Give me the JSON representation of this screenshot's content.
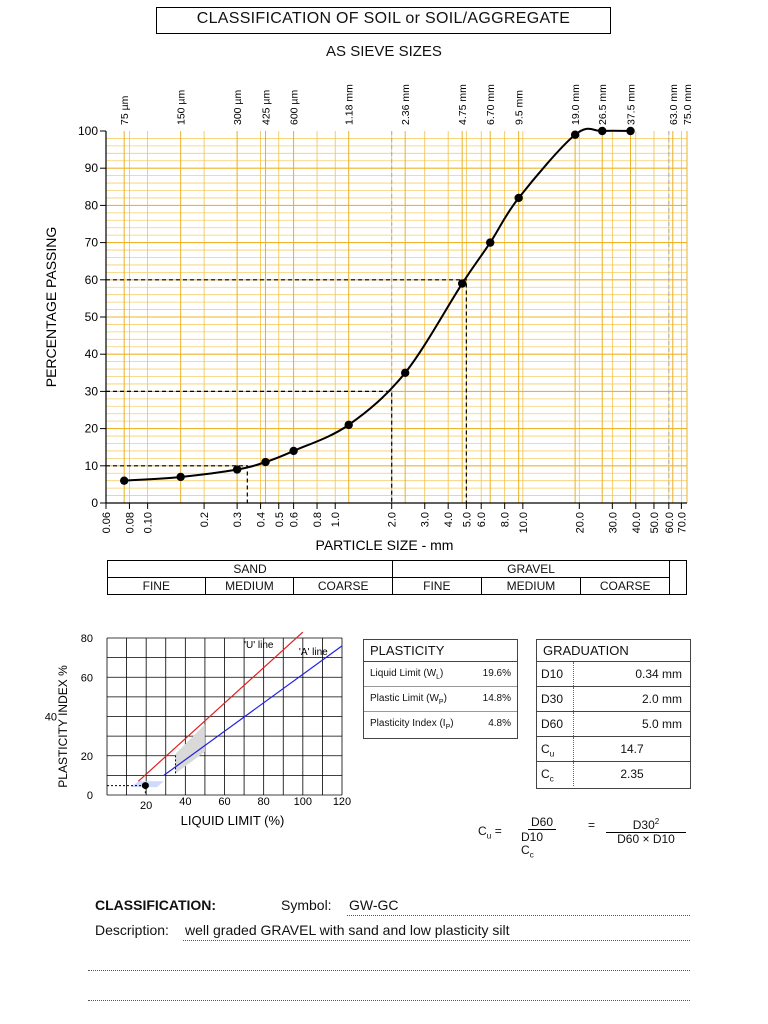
{
  "title": "CLASSIFICATION OF SOIL or SOIL/AGGREGATE",
  "subtitle": "AS SIEVE SIZES",
  "chart_data": [
    {
      "type": "line",
      "name": "grading-curve",
      "xscale": "log",
      "xlim": [
        0.06,
        75
      ],
      "ylim": [
        0,
        100
      ],
      "xlabel": "PARTICLE SIZE - mm",
      "ylabel": "PERCENTAGE PASSING",
      "grid": true,
      "yticks": [
        "0",
        "10",
        "20",
        "30",
        "40",
        "50",
        "60",
        "70",
        "80",
        "90",
        "100"
      ],
      "xticks": [
        {
          "v": 0.06,
          "t": "0.06"
        },
        {
          "v": 0.08,
          "t": "0.08"
        },
        {
          "v": 0.1,
          "t": "0.10"
        },
        {
          "v": 0.2,
          "t": "0.2"
        },
        {
          "v": 0.3,
          "t": "0.3"
        },
        {
          "v": 0.4,
          "t": "0.4"
        },
        {
          "v": 0.5,
          "t": "0.5"
        },
        {
          "v": 0.6,
          "t": "0.6"
        },
        {
          "v": 0.8,
          "t": "0.8"
        },
        {
          "v": 1.0,
          "t": "1.0"
        },
        {
          "v": 2.0,
          "t": "2.0"
        },
        {
          "v": 3.0,
          "t": "3.0"
        },
        {
          "v": 4.0,
          "t": "4.0"
        },
        {
          "v": 5.0,
          "t": "5.0"
        },
        {
          "v": 6.0,
          "t": "6.0"
        },
        {
          "v": 8.0,
          "t": "8.0"
        },
        {
          "v": 10,
          "t": "10.0"
        },
        {
          "v": 20,
          "t": "20.0"
        },
        {
          "v": 30,
          "t": "30.0"
        },
        {
          "v": 40,
          "t": "40.0"
        },
        {
          "v": 50,
          "t": "50.0"
        },
        {
          "v": 60,
          "t": "60.0"
        },
        {
          "v": 70,
          "t": "70.0"
        }
      ],
      "sieves": [
        {
          "v": 0.075,
          "t": "75 µm"
        },
        {
          "v": 0.15,
          "t": "150 µm"
        },
        {
          "v": 0.3,
          "t": "300 µm"
        },
        {
          "v": 0.425,
          "t": "425 µm"
        },
        {
          "v": 0.6,
          "t": "600 µm"
        },
        {
          "v": 1.18,
          "t": "1.18 mm"
        },
        {
          "v": 2.36,
          "t": "2.36 mm"
        },
        {
          "v": 4.75,
          "t": "4.75 mm"
        },
        {
          "v": 6.7,
          "t": "6.70 mm"
        },
        {
          "v": 9.5,
          "t": "9.5 mm"
        },
        {
          "v": 19,
          "t": "19.0 mm"
        },
        {
          "v": 26.5,
          "t": "26.5 mm"
        },
        {
          "v": 37.5,
          "t": "37.5 mm"
        },
        {
          "v": 63,
          "t": "63.0 mm"
        },
        {
          "v": 75,
          "t": "75.0 mm"
        }
      ],
      "points": [
        {
          "x": 0.075,
          "y": 6
        },
        {
          "x": 0.15,
          "y": 7
        },
        {
          "x": 0.3,
          "y": 9
        },
        {
          "x": 0.425,
          "y": 11
        },
        {
          "x": 0.6,
          "y": 14
        },
        {
          "x": 1.18,
          "y": 21
        },
        {
          "x": 2.36,
          "y": 35
        },
        {
          "x": 4.75,
          "y": 59
        },
        {
          "x": 6.7,
          "y": 70
        },
        {
          "x": 9.5,
          "y": 82
        },
        {
          "x": 19,
          "y": 99
        },
        {
          "x": 26.5,
          "y": 100
        },
        {
          "x": 37.5,
          "y": 100
        }
      ],
      "guides": [
        {
          "y": 10,
          "x": 0.34
        },
        {
          "y": 30,
          "x": 2.0
        },
        {
          "y": 60,
          "x": 5.0
        }
      ]
    },
    {
      "type": "scatter",
      "name": "plasticity-chart",
      "xlabel": "LIQUID LIMIT (%)",
      "ylabel": "PLASTICITY INDEX %",
      "xlim": [
        0,
        120
      ],
      "ylim": [
        0,
        80
      ],
      "grid": true,
      "xticks": [
        "20",
        "40",
        "60",
        "80",
        "100",
        "120"
      ],
      "yticks": [
        "0",
        "20",
        "40",
        "60",
        "80"
      ],
      "lines": [
        {
          "name": "'U' line",
          "color": "#e02020",
          "points": [
            [
              16,
              7
            ],
            [
              100,
              83
            ]
          ]
        },
        {
          "name": "'A' line",
          "color": "#2020e0",
          "points": [
            [
              29,
              10
            ],
            [
              120,
              76
            ]
          ]
        }
      ],
      "points": [
        {
          "x": 19.6,
          "y": 4.8
        }
      ]
    }
  ],
  "soil_bar": {
    "groups": [
      "SAND",
      "GRAVEL"
    ],
    "subs": [
      "FINE",
      "MEDIUM",
      "COARSE",
      "FINE",
      "MEDIUM",
      "COARSE"
    ]
  },
  "plasticity": {
    "header": "PLASTICITY",
    "rows": [
      {
        "label": "Liquid Limit (W",
        "sub": "L",
        "close": ")",
        "value": "19.6%"
      },
      {
        "label": "Plastic Limit (W",
        "sub": "P",
        "close": ")",
        "value": "14.8%"
      },
      {
        "label": "Plasticity Index (I",
        "sub": "P",
        "close": ")",
        "value": "4.8%"
      }
    ]
  },
  "graduation": {
    "header": "GRADUATION",
    "rows": [
      {
        "k": "D10",
        "v": "0.34 mm"
      },
      {
        "k": "D30",
        "v": "2.0 mm"
      },
      {
        "k": "D60",
        "v": "5.0 mm"
      },
      {
        "k": "C",
        "sub": "u",
        "v": "14.7"
      },
      {
        "k": "C",
        "sub": "c",
        "v": "2.35"
      }
    ]
  },
  "formulas": {
    "cu_lhs": "C",
    "cu_sub": "u",
    "eq": "=",
    "cu_num": "D60",
    "cu_den": "D10",
    "cc_lhs": "C",
    "cc_sub": "c",
    "cc_num": "D30",
    "cc_sup": "2",
    "cc_den": "D60 × D10"
  },
  "classification": {
    "label": "CLASSIFICATION:",
    "symbol_label": "Symbol:",
    "symbol": "GW-GC",
    "desc_label": "Description:",
    "description": "well graded GRAVEL with sand and low plasticity silt"
  }
}
